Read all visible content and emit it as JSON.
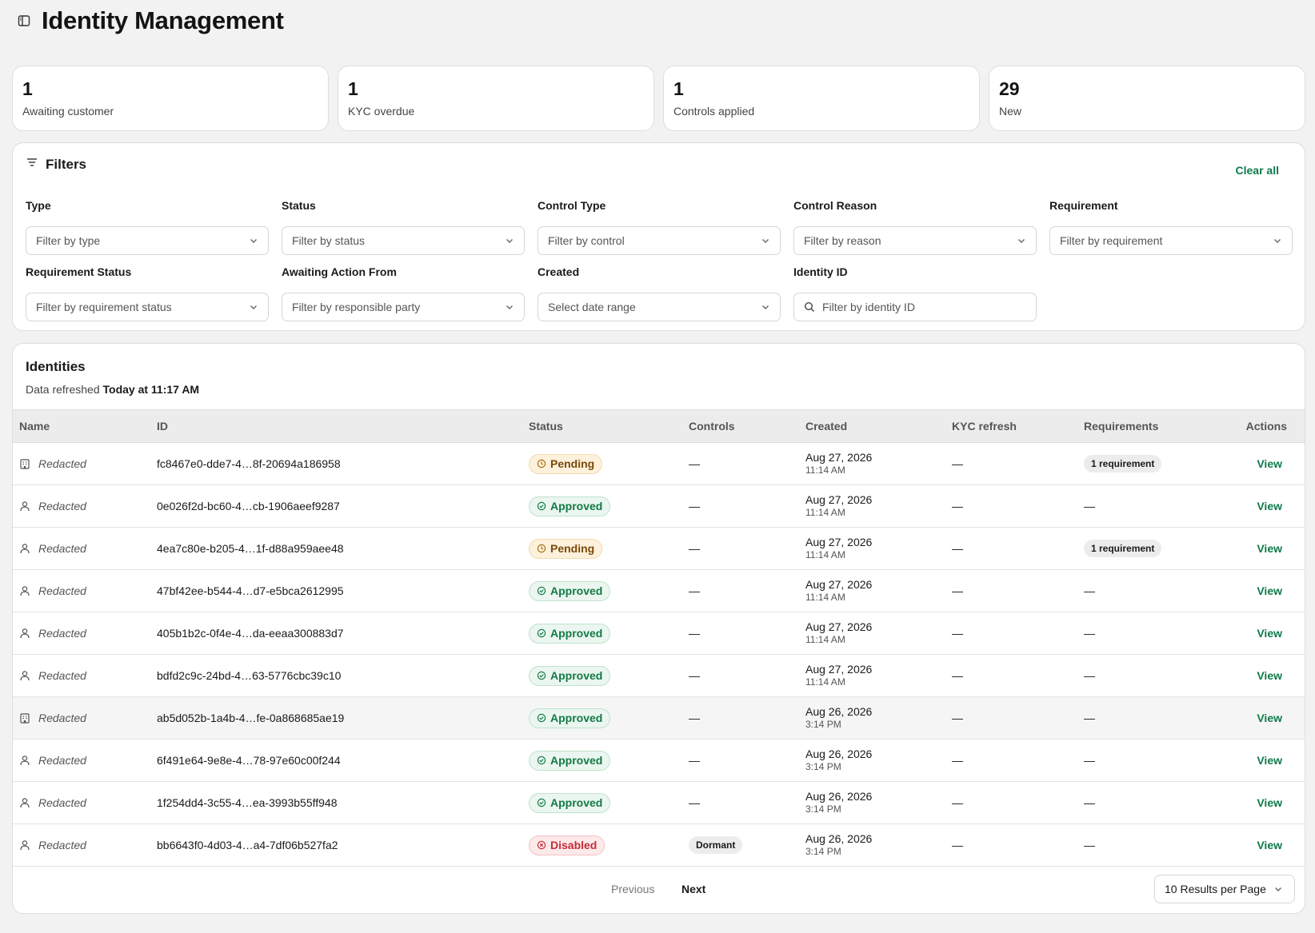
{
  "header": {
    "title": "Identity Management"
  },
  "stats": [
    {
      "value": "1",
      "label": "Awaiting customer"
    },
    {
      "value": "1",
      "label": "KYC overdue"
    },
    {
      "value": "1",
      "label": "Controls applied"
    },
    {
      "value": "29",
      "label": "New"
    }
  ],
  "filters": {
    "title": "Filters",
    "clear_all": "Clear all",
    "fields": [
      {
        "label": "Type",
        "placeholder": "Filter by type"
      },
      {
        "label": "Status",
        "placeholder": "Filter by status"
      },
      {
        "label": "Control Type",
        "placeholder": "Filter by control"
      },
      {
        "label": "Control Reason",
        "placeholder": "Filter by reason"
      },
      {
        "label": "Requirement",
        "placeholder": "Filter by requirement"
      },
      {
        "label": "Requirement Status",
        "placeholder": "Filter by requirement status"
      },
      {
        "label": "Awaiting Action From",
        "placeholder": "Filter by responsible party"
      },
      {
        "label": "Created",
        "placeholder": "Select date range"
      },
      {
        "label": "Identity ID",
        "placeholder": "Filter by identity ID"
      }
    ]
  },
  "table": {
    "title": "Identities",
    "refreshed_prefix": "Data refreshed",
    "refreshed_time": "Today at 11:17 AM",
    "columns": [
      "Name",
      "ID",
      "Status",
      "Controls",
      "Created",
      "KYC refresh",
      "Requirements",
      "Actions"
    ],
    "rows": [
      {
        "type": "building-icon",
        "name": "Redacted",
        "id": "fc8467e0-dde7-4…8f-20694a186958",
        "status": "Pending",
        "controls": "—",
        "date": "Aug 27, 2026",
        "time": "11:14 AM",
        "kyc": "—",
        "requirements": "1 requirement",
        "action": "View"
      },
      {
        "type": "person-icon",
        "name": "Redacted",
        "id": "0e026f2d-bc60-4…cb-1906aeef9287",
        "status": "Approved",
        "controls": "—",
        "date": "Aug 27, 2026",
        "time": "11:14 AM",
        "kyc": "—",
        "requirements": "—",
        "action": "View"
      },
      {
        "type": "person-icon",
        "name": "Redacted",
        "id": "4ea7c80e-b205-4…1f-d88a959aee48",
        "status": "Pending",
        "controls": "—",
        "date": "Aug 27, 2026",
        "time": "11:14 AM",
        "kyc": "—",
        "requirements": "1 requirement",
        "action": "View"
      },
      {
        "type": "person-icon",
        "name": "Redacted",
        "id": "47bf42ee-b544-4…d7-e5bca2612995",
        "status": "Approved",
        "controls": "—",
        "date": "Aug 27, 2026",
        "time": "11:14 AM",
        "kyc": "—",
        "requirements": "—",
        "action": "View"
      },
      {
        "type": "person-icon",
        "name": "Redacted",
        "id": "405b1b2c-0f4e-4…da-eeaa300883d7",
        "status": "Approved",
        "controls": "—",
        "date": "Aug 27, 2026",
        "time": "11:14 AM",
        "kyc": "—",
        "requirements": "—",
        "action": "View"
      },
      {
        "type": "person-icon",
        "name": "Redacted",
        "id": "bdfd2c9c-24bd-4…63-5776cbc39c10",
        "status": "Approved",
        "controls": "—",
        "date": "Aug 27, 2026",
        "time": "11:14 AM",
        "kyc": "—",
        "requirements": "—",
        "action": "View"
      },
      {
        "type": "building-icon",
        "name": "Redacted",
        "id": "ab5d052b-1a4b-4…fe-0a868685ae19",
        "status": "Approved",
        "controls": "—",
        "date": "Aug 26, 2026",
        "time": "3:14 PM",
        "kyc": "—",
        "requirements": "—",
        "action": "View",
        "highlight": true
      },
      {
        "type": "person-icon",
        "name": "Redacted",
        "id": "6f491e64-9e8e-4…78-97e60c00f244",
        "status": "Approved",
        "controls": "—",
        "date": "Aug 26, 2026",
        "time": "3:14 PM",
        "kyc": "—",
        "requirements": "—",
        "action": "View"
      },
      {
        "type": "person-icon",
        "name": "Redacted",
        "id": "1f254dd4-3c55-4…ea-3993b55ff948",
        "status": "Approved",
        "controls": "—",
        "date": "Aug 26, 2026",
        "time": "3:14 PM",
        "kyc": "—",
        "requirements": "—",
        "action": "View"
      },
      {
        "type": "person-icon",
        "name": "Redacted",
        "id": "bb6643f0-4d03-4…a4-7df06b527fa2",
        "status": "Disabled",
        "controls": "Dormant",
        "date": "Aug 26, 2026",
        "time": "3:14 PM",
        "kyc": "—",
        "requirements": "—",
        "action": "View"
      }
    ]
  },
  "pagination": {
    "previous": "Previous",
    "next": "Next",
    "per_page": "10 Results per Page"
  },
  "colors": {
    "accent": "#0e7a4a",
    "pending": "#7a4a08",
    "approved": "#137a45",
    "disabled": "#c42d38"
  }
}
